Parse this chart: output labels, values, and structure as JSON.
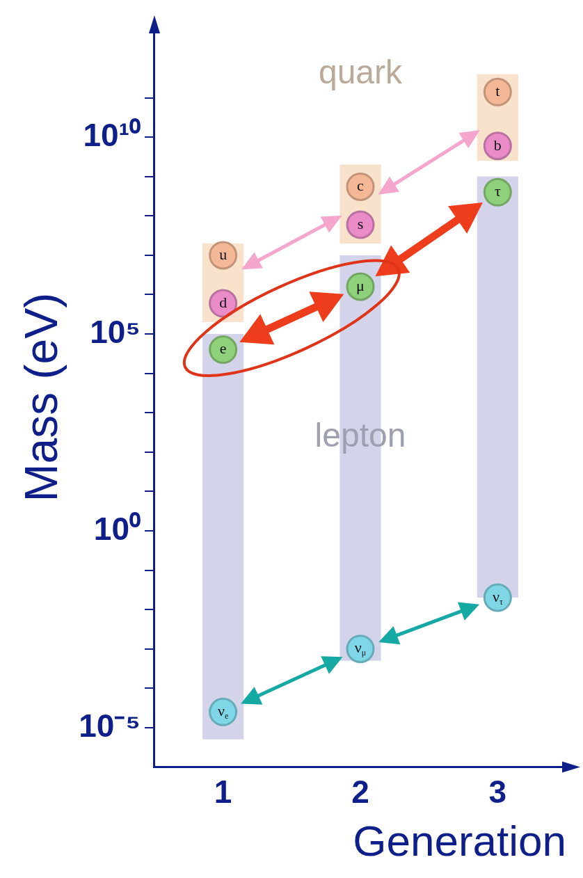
{
  "chart_data": {
    "type": "scatter",
    "xlabel": "Generation",
    "ylabel": "Mass (eV)",
    "categories": [
      "1",
      "2",
      "3"
    ],
    "log": "y",
    "ylim": [
      1e-06,
      6000000000000.0
    ],
    "yticks": [
      {
        "value": 1e-05,
        "label": "10⁻⁵"
      },
      {
        "value": 0.0001,
        "label": null
      },
      {
        "value": 0.001,
        "label": null
      },
      {
        "value": 0.01,
        "label": null
      },
      {
        "value": 0.1,
        "label": null
      },
      {
        "value": 1,
        "label": "10⁰"
      },
      {
        "value": 10,
        "label": null
      },
      {
        "value": 100,
        "label": null
      },
      {
        "value": 1000,
        "label": null
      },
      {
        "value": 10000,
        "label": null
      },
      {
        "value": 100000,
        "label": "10⁵"
      },
      {
        "value": 1000000.0,
        "label": null
      },
      {
        "value": 10000000.0,
        "label": null
      },
      {
        "value": 100000000.0,
        "label": null
      },
      {
        "value": 1000000000.0,
        "label": null
      },
      {
        "value": 10000000000.0,
        "label": "10¹⁰"
      },
      {
        "value": 100000000000.0,
        "label": null
      }
    ],
    "grid": false,
    "legend": false,
    "marker": "circle",
    "series": [
      {
        "name": "lepton",
        "type": "bar",
        "color": "#d3d4ea",
        "base": [
          5e-06,
          0.0005,
          0.02
        ],
        "values": [
          100000.0,
          10000000.0,
          1000000000.0
        ]
      },
      {
        "name": "quark",
        "type": "bar",
        "color": "#f8e2cc",
        "base": [
          200000.0,
          20000000.0,
          2500000000.0
        ],
        "values": [
          20000000.0,
          2000000000.0,
          400000000000.0
        ]
      },
      {
        "color": "#f4b896",
        "values": [
          10000000.0,
          550000000.0,
          140000000000.0
        ],
        "value_labels": [
          "u",
          "c",
          "t"
        ]
      },
      {
        "color": "#e98cc8",
        "values": [
          600000.0,
          60000000.0,
          6000000000.0
        ],
        "value_labels": [
          "d",
          "s",
          "b"
        ]
      },
      {
        "color": "#8fd07a",
        "values": [
          40000.0,
          1600000.0,
          400000000.0
        ],
        "value_labels": [
          "e",
          "μ",
          "τ"
        ]
      },
      {
        "color": "#7fd6e6",
        "values": [
          2.5e-05,
          0.001,
          0.02
        ],
        "value_labels": [
          "ν$_{e}$",
          "ν$_{μ}$",
          "ν$_{τ}$"
        ]
      }
    ]
  }
}
